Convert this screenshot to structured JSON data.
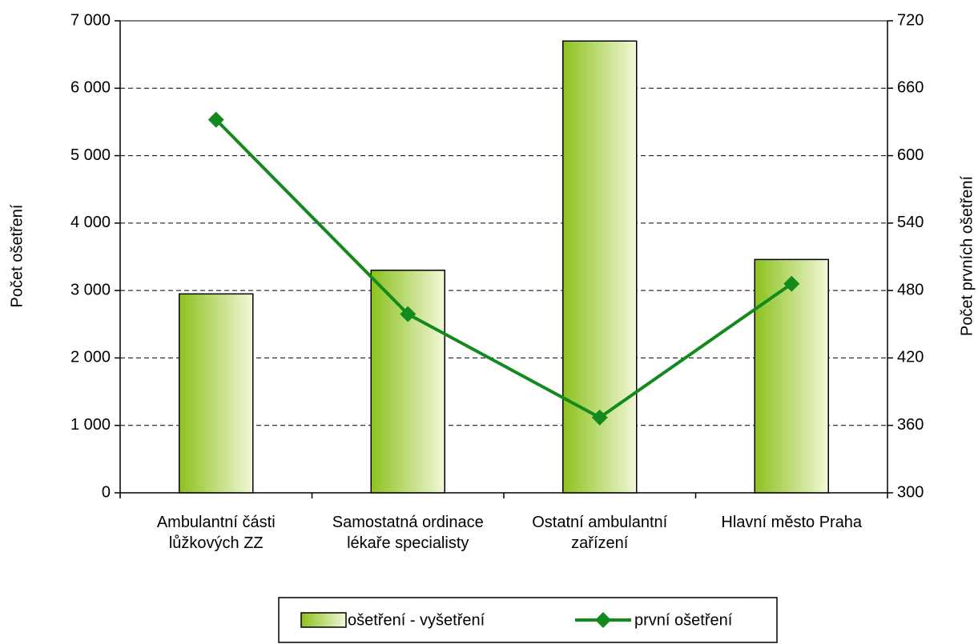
{
  "chart_data": {
    "type": "bar_line",
    "y_label": "Počet ošetření",
    "y2_label": "Počet prvních ošetření",
    "categories": [
      "Ambulantní části lůžkových ZZ",
      "Samostatná ordinace lékaře specialisty",
      "Ostatní ambulantní zařízení",
      "Hlavní město Praha"
    ],
    "series": [
      {
        "name": "ošetření - vyšetření",
        "type": "bar",
        "color": "#8cc21e",
        "values": [
          2950,
          3300,
          6700,
          3460
        ]
      },
      {
        "name": "první ošetření",
        "type": "line",
        "axis": "y2",
        "color": "#138a1e",
        "values": [
          632,
          459,
          367,
          486
        ]
      }
    ],
    "ylim": [
      0,
      7000
    ],
    "yticks": [
      0,
      {
        "value": 1000,
        "label": "1 000"
      },
      {
        "value": 2000,
        "label": "2 000"
      },
      {
        "value": 3000,
        "label": "3 000"
      },
      {
        "value": 4000,
        "label": "4 000"
      },
      {
        "value": 5000,
        "label": "5 000"
      },
      {
        "value": 6000,
        "label": "6 000"
      },
      {
        "value": 7000,
        "label": "7 000"
      }
    ],
    "y2lim": [
      300,
      720
    ],
    "y2ticks": [
      300,
      360,
      420,
      480,
      540,
      600,
      660,
      720
    ],
    "grid": true,
    "legend": "bottom"
  }
}
